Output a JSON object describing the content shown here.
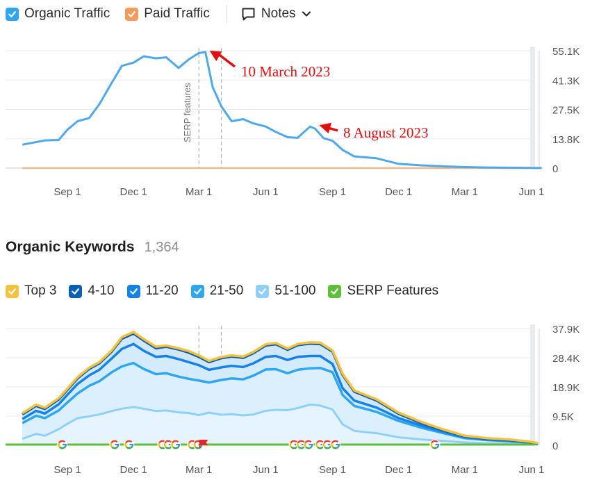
{
  "traffic_legend": {
    "organic": {
      "label": "Organic Traffic",
      "color": "#2ea6f0",
      "checked": true
    },
    "paid": {
      "label": "Paid Traffic",
      "color": "#f39b5b",
      "checked": true
    },
    "notes": {
      "label": "Notes",
      "icon": "note-icon"
    }
  },
  "keywords_header": {
    "title": "Organic Keywords",
    "count": "1,364"
  },
  "keyword_legend": [
    {
      "label": "Top 3",
      "color": "#f6c23e"
    },
    {
      "label": "4-10",
      "color": "#0b5fb6"
    },
    {
      "label": "11-20",
      "color": "#1583e6"
    },
    {
      "label": "21-50",
      "color": "#2ea6f0"
    },
    {
      "label": "51-100",
      "color": "#8fd0fa"
    },
    {
      "label": "SERP Features",
      "color": "#5fbf3a"
    }
  ],
  "chart_data": [
    {
      "type": "line",
      "x_ticks": [
        "Sep 1",
        "Dec 1",
        "Mar 1",
        "Jun 1",
        "Sep 1",
        "Dec 1",
        "Mar 1",
        "Jun 1"
      ],
      "y_ticks": [
        "55.1K",
        "41.3K",
        "27.5K",
        "13.8K",
        "0"
      ],
      "ylim": [
        0,
        55100
      ],
      "x": [
        "2022-07-01",
        "2022-08-01",
        "2022-08-20",
        "2022-09-01",
        "2022-09-15",
        "2022-10-01",
        "2022-10-15",
        "2022-11-01",
        "2022-11-15",
        "2022-12-01",
        "2022-12-15",
        "2023-01-01",
        "2023-01-15",
        "2023-02-01",
        "2023-02-15",
        "2023-03-01",
        "2023-03-10",
        "2023-03-20",
        "2023-04-01",
        "2023-04-15",
        "2023-05-01",
        "2023-05-15",
        "2023-06-01",
        "2023-06-15",
        "2023-07-01",
        "2023-07-15",
        "2023-08-01",
        "2023-08-08",
        "2023-08-20",
        "2023-09-01",
        "2023-09-15",
        "2023-10-01",
        "2023-11-01",
        "2023-12-01",
        "2024-01-01",
        "2024-02-01",
        "2024-03-01",
        "2024-04-01",
        "2024-05-01",
        "2024-06-01",
        "2024-06-15"
      ],
      "series": [
        {
          "name": "Organic Traffic",
          "color": "#4fa8ec",
          "values": [
            11000,
            13000,
            13200,
            18000,
            22000,
            23500,
            30000,
            40000,
            48000,
            49500,
            52500,
            51500,
            52000,
            47000,
            51000,
            54000,
            54500,
            38000,
            29000,
            22000,
            23000,
            21000,
            19500,
            17000,
            14500,
            14200,
            19500,
            18500,
            14000,
            12800,
            8500,
            5500,
            4600,
            2000,
            1300,
            800,
            500,
            300,
            200,
            100,
            100
          ]
        },
        {
          "name": "Paid Traffic",
          "color": "#f3b58a",
          "values": [
            0,
            0,
            0,
            0,
            0,
            0,
            0,
            0,
            0,
            0,
            0,
            0,
            0,
            0,
            0,
            0,
            0,
            0,
            0,
            0,
            0,
            0,
            0,
            0,
            0,
            0,
            0,
            0,
            0,
            0,
            0,
            0,
            0,
            0,
            0,
            0,
            0,
            0,
            0,
            0,
            0
          ]
        }
      ],
      "annotations": [
        {
          "text": "10 March 2023",
          "x": "2023-03-10",
          "y": 54500
        },
        {
          "text": "8 August 2023",
          "x": "2023-08-08",
          "y": 19500
        }
      ],
      "notes_markers": [
        {
          "x": "2023-03-01",
          "label": "SERP features"
        },
        {
          "x": "2023-04-01",
          "label": ""
        }
      ]
    },
    {
      "type": "area",
      "x_ticks": [
        "Sep 1",
        "Dec 1",
        "Mar 1",
        "Jun 1",
        "Sep 1",
        "Dec 1",
        "Mar 1",
        "Jun 1"
      ],
      "y_ticks": [
        "37.9K",
        "28.4K",
        "18.9K",
        "9.5K",
        "0"
      ],
      "ylim": [
        0,
        37900
      ],
      "x": [
        "2022-07-01",
        "2022-07-20",
        "2022-08-01",
        "2022-08-20",
        "2022-09-01",
        "2022-09-15",
        "2022-10-01",
        "2022-10-15",
        "2022-11-01",
        "2022-11-15",
        "2022-12-01",
        "2022-12-15",
        "2023-01-01",
        "2023-01-15",
        "2023-02-01",
        "2023-02-15",
        "2023-03-01",
        "2023-03-15",
        "2023-04-01",
        "2023-04-15",
        "2023-05-01",
        "2023-05-15",
        "2023-06-01",
        "2023-06-15",
        "2023-07-01",
        "2023-07-15",
        "2023-08-01",
        "2023-08-15",
        "2023-09-01",
        "2023-09-15",
        "2023-10-01",
        "2023-11-01",
        "2023-12-01",
        "2024-01-01",
        "2024-02-01",
        "2024-03-01",
        "2024-04-01",
        "2024-05-01",
        "2024-06-01",
        "2024-06-10"
      ],
      "series": [
        {
          "name": "Top 3",
          "color": "#f6c23e",
          "values": [
            10400,
            13200,
            12200,
            15300,
            18400,
            22100,
            25200,
            27000,
            30800,
            35100,
            36800,
            34500,
            32000,
            32400,
            31500,
            30600,
            29200,
            27400,
            28700,
            29200,
            28800,
            30300,
            32800,
            33200,
            31400,
            32900,
            33400,
            33300,
            30800,
            23200,
            17800,
            14900,
            10600,
            7600,
            5100,
            3100,
            2300,
            1900,
            1100,
            700
          ]
        },
        {
          "name": "4-10",
          "color": "#0b5fb6",
          "values": [
            10000,
            12800,
            11800,
            14900,
            18000,
            21700,
            24800,
            26600,
            30400,
            34600,
            36300,
            34000,
            31500,
            32000,
            31100,
            30100,
            28700,
            27000,
            28300,
            28800,
            28400,
            29900,
            32400,
            32800,
            31000,
            32500,
            33000,
            32900,
            30400,
            22800,
            17400,
            14500,
            10200,
            7200,
            4800,
            2900,
            2100,
            1700,
            1000,
            600
          ]
        },
        {
          "name": "11-20",
          "color": "#1583e6",
          "values": [
            8500,
            11200,
            10300,
            13300,
            16400,
            19900,
            22700,
            24500,
            28200,
            31300,
            32900,
            30700,
            28700,
            29000,
            28000,
            27000,
            26000,
            24500,
            25300,
            25800,
            25400,
            26600,
            28700,
            29000,
            27700,
            28700,
            29000,
            29000,
            26400,
            18500,
            14500,
            12200,
            8800,
            6400,
            4300,
            2600,
            1900,
            1500,
            900,
            500
          ]
        },
        {
          "name": "21-50",
          "color": "#2ea6f0",
          "values": [
            7200,
            9600,
            8800,
            11300,
            13900,
            16800,
            19300,
            20800,
            23700,
            25600,
            26700,
            24800,
            23100,
            23400,
            22300,
            21600,
            21000,
            20400,
            21200,
            21700,
            21400,
            22600,
            24600,
            24700,
            23400,
            24500,
            25000,
            25100,
            23700,
            16300,
            12800,
            10800,
            7900,
            5700,
            3900,
            2300,
            1700,
            1300,
            800,
            400
          ]
        },
        {
          "name": "51-100",
          "color": "#8fd0fa",
          "values": [
            2100,
            3700,
            3100,
            5200,
            7000,
            8800,
            9400,
            10000,
            11100,
            11900,
            12400,
            11900,
            11100,
            11300,
            10700,
            10500,
            9800,
            10600,
            9900,
            10100,
            9700,
            10000,
            11200,
            11500,
            11400,
            12100,
            13200,
            12900,
            11600,
            6800,
            4700,
            3900,
            2600,
            1900,
            1400,
            900,
            600,
            500,
            300,
            200
          ]
        },
        {
          "name": "SERP Features",
          "color": "#5fbf3a",
          "values": [
            0,
            0,
            0,
            0,
            0,
            0,
            0,
            0,
            0,
            0,
            0,
            0,
            0,
            0,
            0,
            0,
            0,
            0,
            0,
            0,
            0,
            0,
            0,
            0,
            0,
            0,
            0,
            0,
            0,
            0,
            0,
            0,
            0,
            0,
            0,
            0,
            0,
            0,
            0,
            0
          ]
        }
      ],
      "markers": [
        {
          "icon": "google-icon",
          "x": "2022-08-25"
        },
        {
          "icon": "google-icon",
          "x": "2022-11-05"
        },
        {
          "icon": "google-icon",
          "x": "2022-11-25"
        },
        {
          "icon": "google-icon",
          "x": "2023-01-10"
        },
        {
          "icon": "google-icon",
          "x": "2023-01-18"
        },
        {
          "icon": "google-icon",
          "x": "2023-01-28"
        },
        {
          "icon": "google-icon",
          "x": "2023-02-20"
        },
        {
          "icon": "google-icon",
          "x": "2023-02-28"
        },
        {
          "icon": "flag-icon",
          "x": "2023-03-08"
        },
        {
          "icon": "google-icon",
          "x": "2023-07-10"
        },
        {
          "icon": "google-icon",
          "x": "2023-07-20"
        },
        {
          "icon": "google-icon",
          "x": "2023-07-30"
        },
        {
          "icon": "google-icon",
          "x": "2023-08-15"
        },
        {
          "icon": "google-icon",
          "x": "2023-08-25"
        },
        {
          "icon": "google-icon",
          "x": "2023-09-05"
        },
        {
          "icon": "google-icon",
          "x": "2024-01-20"
        }
      ],
      "notes_markers": [
        {
          "x": "2023-03-01"
        },
        {
          "x": "2023-04-01"
        }
      ]
    }
  ]
}
